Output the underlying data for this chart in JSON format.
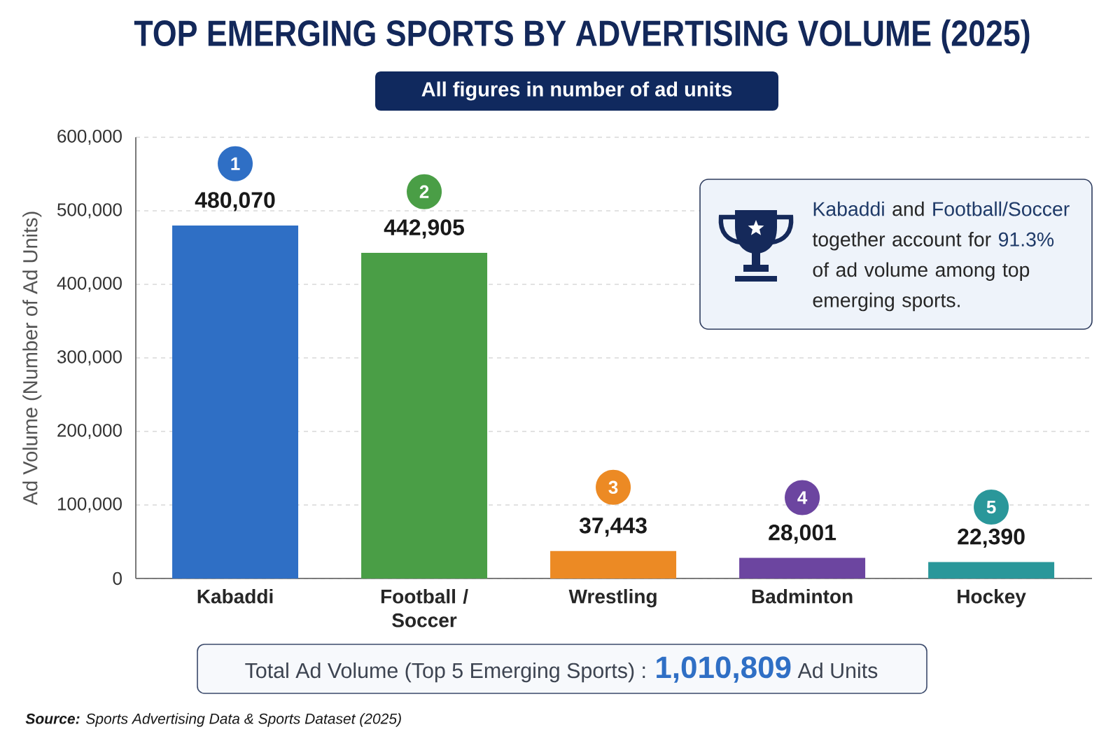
{
  "chart_data": {
    "type": "bar",
    "title": "TOP EMERGING SPORTS BY ADVERTISING VOLUME (2025)",
    "subtitle": "All figures in number of ad units",
    "ylabel": "Ad Volume (Number of Ad Units)",
    "categories": [
      "Kabaddi",
      "Football / Soccer",
      "Wrestling",
      "Badminton",
      "Hockey"
    ],
    "values": [
      480070,
      442905,
      37443,
      28001,
      22390
    ],
    "colors": [
      "#2f6fc5",
      "#4a9e46",
      "#ec8a24",
      "#6c45a0",
      "#2a979a"
    ],
    "value_labels": [
      "480,070",
      "442,905",
      "37,443",
      "28,001",
      "22,390"
    ],
    "ylim": [
      0,
      600000
    ],
    "yticks": [
      {
        "value": 0,
        "label": "0"
      },
      {
        "value": 100000,
        "label": "100,000"
      },
      {
        "value": 200000,
        "label": "200,000"
      },
      {
        "value": 300000,
        "label": "300,000"
      },
      {
        "value": 400000,
        "label": "400,000"
      },
      {
        "value": 500000,
        "label": "500,000"
      },
      {
        "value": 600000,
        "label": "600,000"
      }
    ],
    "grid": "y",
    "annotations": [
      {
        "text": "1",
        "x": "Kabaddi",
        "y": 564000
      },
      {
        "text": "2",
        "x": "Football / Soccer",
        "y": 526000
      },
      {
        "text": "3",
        "x": "Wrestling",
        "y": 124000
      },
      {
        "text": "4",
        "x": "Badminton",
        "y": 110000
      },
      {
        "text": "5",
        "x": "Hockey",
        "y": 97000
      },
      "**Kabaddi** and **Football/Soccer** together account for **91.3%** of ad volume among top emerging sports.",
      "Total Ad Volume (Top 5 Emerging Sports) : **1,010,809** Ad Units",
      "**Source:** Sports Advertising Data & Sports Dataset (2025)"
    ]
  }
}
